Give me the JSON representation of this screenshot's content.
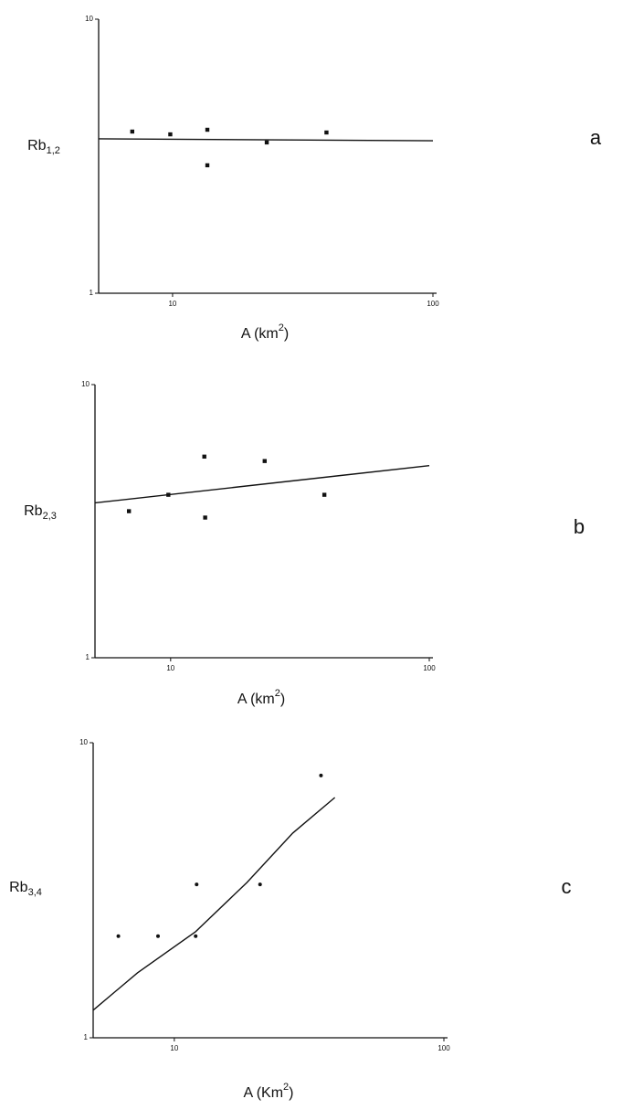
{
  "chart_data": [
    {
      "type": "scatter",
      "log_x": true,
      "log_y": true,
      "xlim": [
        5.2,
        100
      ],
      "ylim": [
        1,
        10
      ],
      "xticks": [
        10,
        100
      ],
      "yticks": [
        1,
        10
      ],
      "ylabel": {
        "text": "Rb",
        "sub": "1,2"
      },
      "xlabel": {
        "before": "A (km",
        "sup": "2",
        "after": ")"
      },
      "panel": "a",
      "series": [
        {
          "marker": "square",
          "color": "#111111",
          "x": [
            7.0,
            9.8,
            13.6,
            13.6,
            23,
            39
          ],
          "values": [
            3.89,
            3.8,
            3.95,
            2.93,
            3.55,
            3.86
          ]
        },
        {
          "marker": "line",
          "color": "#111111",
          "x": [
            5.2,
            100
          ],
          "values": [
            3.66,
            3.6
          ]
        }
      ]
    },
    {
      "type": "scatter",
      "log_x": true,
      "log_y": true,
      "xlim": [
        5.1,
        100
      ],
      "ylim": [
        1,
        10
      ],
      "xticks": [
        10,
        100
      ],
      "yticks": [
        1,
        10
      ],
      "ylabel": {
        "text": "Rb",
        "sub": "2,3"
      },
      "xlabel": {
        "before": "A (km",
        "sup": "2",
        "after": ")"
      },
      "panel": "b",
      "series": [
        {
          "marker": "square",
          "color": "#111111",
          "x": [
            6.9,
            9.8,
            13.5,
            13.6,
            23.1,
            39.3
          ],
          "values": [
            3.44,
            3.95,
            5.45,
            3.26,
            5.25,
            3.95
          ]
        },
        {
          "marker": "line",
          "color": "#111111",
          "x": [
            5.1,
            100
          ],
          "values": [
            3.69,
            5.05
          ]
        }
      ]
    },
    {
      "type": "scatter",
      "log_x": true,
      "log_y": true,
      "xlim": [
        5,
        100
      ],
      "ylim": [
        1,
        10
      ],
      "xticks": [
        10,
        100
      ],
      "yticks": [
        1,
        10
      ],
      "ylabel": {
        "text": "Rb",
        "sub": "3,4"
      },
      "xlabel": {
        "before": "A (Km",
        "sup": "2",
        "after": ")"
      },
      "panel": "c",
      "series": [
        {
          "marker": "dot",
          "color": "#111111",
          "x": [
            6.2,
            8.7,
            12.1,
            12.0,
            20.8,
            35
          ],
          "values": [
            2.21,
            2.21,
            3.31,
            2.21,
            3.31,
            7.74
          ]
        },
        {
          "marker": "line",
          "color": "#111111",
          "x": [
            5,
            7.3,
            12,
            18.6,
            27.5,
            39.4
          ],
          "values": [
            1.24,
            1.66,
            2.29,
            3.36,
            4.94,
            6.52
          ]
        }
      ]
    }
  ]
}
